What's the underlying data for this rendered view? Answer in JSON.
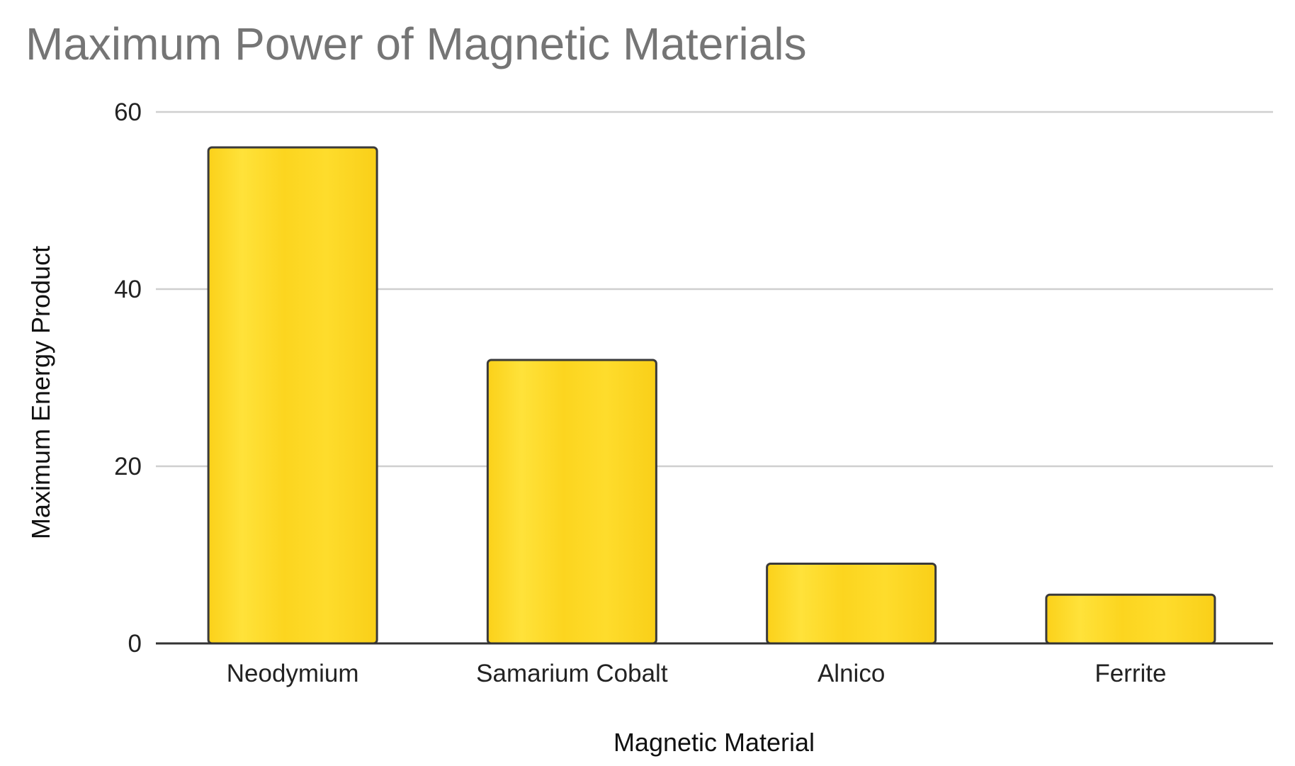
{
  "chart_data": {
    "type": "bar",
    "title": "Maximum Power of Magnetic Materials",
    "xlabel": "Magnetic Material",
    "ylabel": "Maximum Energy Product",
    "categories": [
      "Neodymium",
      "Samarium Cobalt",
      "Alnico",
      "Ferrite"
    ],
    "series": [
      {
        "values": [
          56,
          32,
          9,
          5.5
        ]
      }
    ],
    "ylim": [
      0,
      60
    ],
    "yticks": [
      "0",
      "20",
      "40",
      "60"
    ],
    "grid": true,
    "legend": "none",
    "colors": {
      "bar_fill": "#fdd31c",
      "bar_highlight": "#ffe640",
      "bar_stroke": "#3a3a3a",
      "title": "#757575",
      "gridline": "#cfcfcf"
    }
  }
}
